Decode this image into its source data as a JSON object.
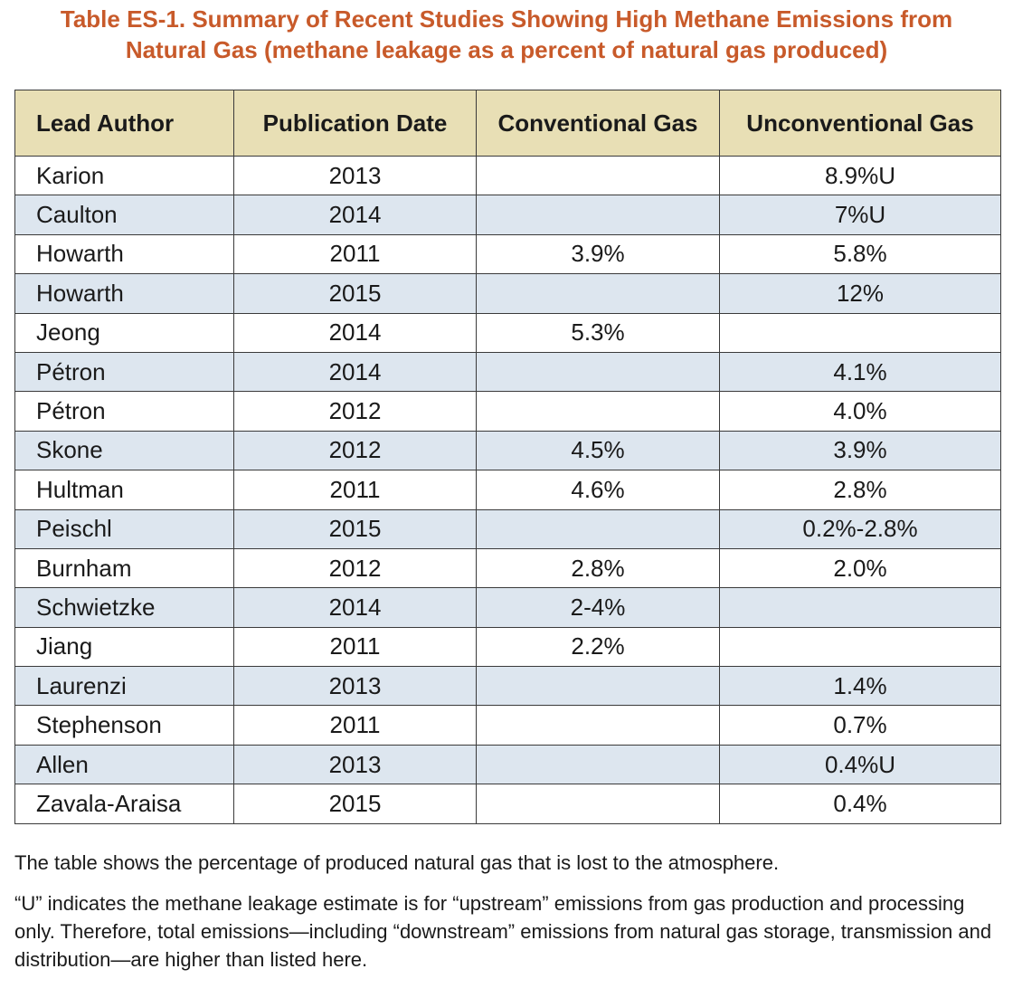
{
  "title": {
    "line1": "Table ES-1. Summary of Recent Studies Showing High Methane Emissions from",
    "line2": "Natural Gas (methane leakage as a percent of natural gas produced)"
  },
  "colors": {
    "title": "#c85a2a",
    "header_background": "#e8dfb5",
    "shaded_row": "#dde6ef",
    "border": "#3a3a3a"
  },
  "table": {
    "headers": [
      "Lead Author",
      "Publication Date",
      "Conventional Gas",
      "Unconventional Gas"
    ],
    "rows": [
      [
        "Karion",
        "2013",
        "",
        "8.9%U"
      ],
      [
        "Caulton",
        "2014",
        "",
        "7%U"
      ],
      [
        "Howarth",
        "2011",
        "3.9%",
        "5.8%"
      ],
      [
        "Howarth",
        "2015",
        "",
        "12%"
      ],
      [
        "Jeong",
        "2014",
        "5.3%",
        ""
      ],
      [
        "Pétron",
        "2014",
        "",
        "4.1%"
      ],
      [
        "Pétron",
        "2012",
        "",
        "4.0%"
      ],
      [
        "Skone",
        "2012",
        "4.5%",
        "3.9%"
      ],
      [
        "Hultman",
        "2011",
        "4.6%",
        "2.8%"
      ],
      [
        "Peischl",
        "2015",
        "",
        "0.2%-2.8%"
      ],
      [
        "Burnham",
        "2012",
        "2.8%",
        "2.0%"
      ],
      [
        "Schwietzke",
        "2014",
        "2-4%",
        ""
      ],
      [
        "Jiang",
        "2011",
        "2.2%",
        ""
      ],
      [
        "Laurenzi",
        "2013",
        "",
        "1.4%"
      ],
      [
        "Stephenson",
        "2011",
        "",
        "0.7%"
      ],
      [
        "Allen",
        "2013",
        "",
        "0.4%U"
      ],
      [
        "Zavala-Araisa",
        "2015",
        "",
        "0.4%"
      ]
    ]
  },
  "notes": {
    "line1": "The table shows the percentage of produced natural gas that is lost to the atmosphere.",
    "line2": "“U” indicates the methane leakage estimate is for “upstream” emissions from gas production and processing only. Therefore, total emissions—including “downstream” emissions from natural gas storage, transmission and distribution—are higher than listed here."
  }
}
